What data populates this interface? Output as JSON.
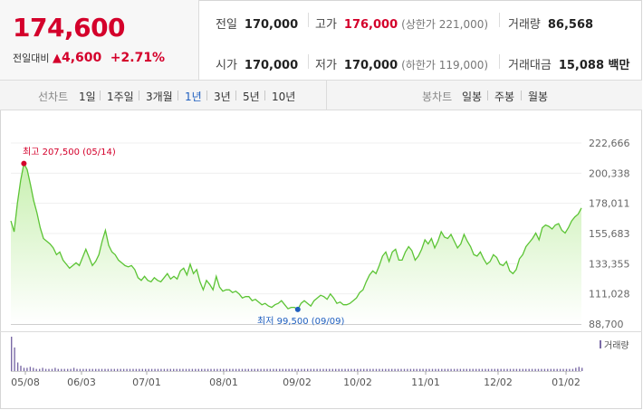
{
  "quote": {
    "price": "174,600",
    "change_label": "전일대비",
    "change_arrow": "▲",
    "change_value": "4,600",
    "change_pct": "+2.71%"
  },
  "stats": {
    "prev_close_label": "전일",
    "prev_close": "170,000",
    "high_label": "고가",
    "high": "176,000",
    "upper_limit": "(상한가 221,000)",
    "volume_label": "거래량",
    "volume": "86,568",
    "open_label": "시가",
    "open": "170,000",
    "low_label": "저가",
    "low": "170,000",
    "lower_limit": "(하한가 119,000)",
    "amount_label": "거래대금",
    "amount": "15,088 백만"
  },
  "period_bar": {
    "line_label": "선차트",
    "periods": [
      "1일",
      "1주일",
      "3개월",
      "1년",
      "3년",
      "5년",
      "10년"
    ],
    "active_period": "1년",
    "candle_label": "봉차트",
    "candles": [
      "일봉",
      "주봉",
      "월봉"
    ]
  },
  "chart_data": {
    "type": "area",
    "y_ticks": [
      "222,666",
      "200,338",
      "178,011",
      "155,683",
      "133,355",
      "111,028",
      "88,700"
    ],
    "ylim": [
      88700,
      222666
    ],
    "x_ticks": [
      "05/08",
      "06/03",
      "07/01",
      "08/01",
      "09/02",
      "10/02",
      "11/01",
      "12/02",
      "01/02"
    ],
    "max_annotation": "최고 207,500 (05/14)",
    "min_annotation": "최저 99,500 (09/09)",
    "volume_legend": "거래량",
    "max_value": 207500,
    "min_value": 99500,
    "series": [
      {
        "values": [
          165000,
          157000,
          178000,
          195000,
          207500,
          203000,
          192000,
          180000,
          171000,
          160000,
          152000,
          150000,
          148000,
          145000,
          140000,
          142000,
          136000,
          133000,
          130000,
          132000,
          134000,
          132000,
          138000,
          144000,
          138000,
          132000,
          135000,
          140000,
          150000,
          158000,
          147000,
          142000,
          140000,
          136000,
          134000,
          132000,
          131000,
          132000,
          129000,
          123000,
          121000,
          124000,
          121000,
          120000,
          123000,
          121000,
          120000,
          123000,
          126000,
          122000,
          124000,
          122000,
          128000,
          130000,
          125000,
          133000,
          126000,
          129000,
          120000,
          114000,
          121000,
          118000,
          114000,
          124000,
          116000,
          113000,
          114000,
          114000,
          112000,
          113000,
          111000,
          108000,
          109000,
          109000,
          106000,
          107000,
          105000,
          103000,
          104000,
          102000,
          101000,
          103000,
          104000,
          106000,
          103000,
          100000,
          101000,
          101000,
          99500,
          104000,
          106000,
          104000,
          102000,
          106000,
          108000,
          110000,
          109000,
          107000,
          111000,
          108000,
          104000,
          105000,
          103000,
          103000,
          104000,
          106000,
          108000,
          112000,
          114000,
          120000,
          125000,
          128000,
          126000,
          132000,
          139000,
          142000,
          135000,
          142000,
          144000,
          136000,
          136000,
          142000,
          146000,
          143000,
          136000,
          139000,
          144000,
          151000,
          148000,
          152000,
          145000,
          150000,
          157000,
          153000,
          152000,
          155000,
          150000,
          145000,
          148000,
          155000,
          150000,
          146000,
          140000,
          139000,
          142000,
          137000,
          133000,
          135000,
          140000,
          138000,
          133000,
          132000,
          135000,
          128000,
          126000,
          129000,
          137000,
          140000,
          146000,
          149000,
          152000,
          156000,
          151000,
          160000,
          162000,
          161000,
          159000,
          162000,
          163000,
          158000,
          156000,
          160000,
          165000,
          168000,
          170000,
          174600
        ]
      }
    ],
    "volume": [
      32,
      22,
      8,
      5,
      3,
      3,
      4,
      3,
      2,
      2,
      3,
      2,
      2,
      2,
      3,
      2,
      2,
      2,
      2,
      2,
      3,
      2,
      2,
      2,
      2,
      2,
      2,
      2,
      2,
      2,
      2,
      2,
      2,
      2,
      2,
      2,
      2,
      2,
      2,
      2,
      2,
      2,
      2,
      2,
      2,
      2,
      2,
      2,
      2,
      2,
      2,
      2,
      2,
      2,
      2,
      2,
      2,
      2,
      2,
      2,
      2,
      2,
      2,
      2,
      2,
      2,
      2,
      2,
      2,
      2,
      2,
      2,
      2,
      2,
      2,
      2,
      2,
      2,
      2,
      2,
      2,
      2,
      2,
      2,
      2,
      2,
      2,
      2,
      2,
      2,
      2,
      2,
      2,
      2,
      2,
      2,
      2,
      2,
      2,
      2,
      2,
      2,
      2,
      2,
      2,
      2,
      2,
      2,
      2,
      2,
      2,
      2,
      2,
      2,
      2,
      2,
      2,
      2,
      2,
      2,
      2,
      2,
      2,
      2,
      2,
      2,
      2,
      2,
      2,
      2,
      2,
      2,
      2,
      2,
      2,
      2,
      2,
      2,
      2,
      2,
      2,
      2,
      2,
      2,
      2,
      2,
      2,
      2,
      2,
      2,
      2,
      2,
      2,
      2,
      2,
      2,
      2,
      2,
      2,
      2,
      2,
      2,
      2,
      2,
      2,
      2,
      2,
      2,
      2,
      2,
      2,
      2,
      2,
      2,
      2,
      2,
      2,
      2,
      2,
      2,
      2,
      3,
      4,
      3
    ],
    "colors": {
      "line": "#5cc435",
      "fill_top": "#c8f0b0",
      "fill_bottom": "#ffffff",
      "volume": "#7a6aa6",
      "max_marker": "#d4002b",
      "min_marker": "#1f5fbf"
    }
  }
}
